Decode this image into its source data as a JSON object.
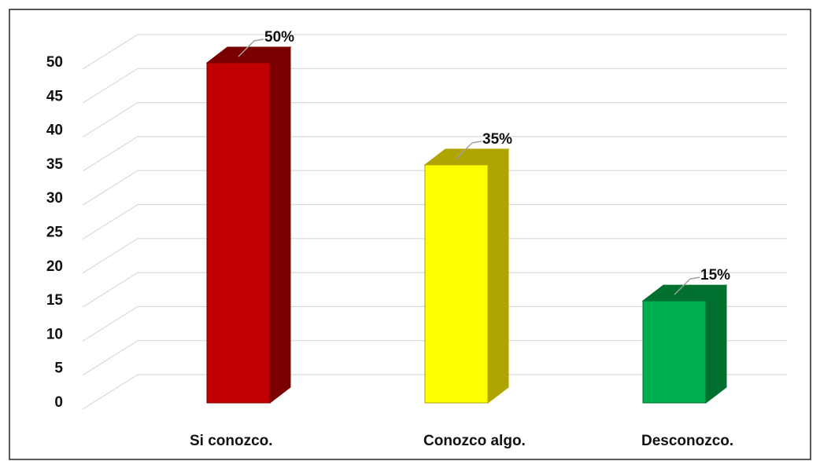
{
  "chart_data": {
    "type": "bar3d",
    "categories": [
      "Si conozco.",
      "Conozco algo.",
      "Desconozco."
    ],
    "values": [
      50,
      35,
      15
    ],
    "value_labels": [
      "50%",
      "35%",
      "15%"
    ],
    "colors": [
      "#c00000",
      "#ffff00",
      "#00b050"
    ],
    "side_colors": [
      "#7a0000",
      "#b0a400",
      "#00702e"
    ],
    "ylim": [
      0,
      50
    ],
    "yticks": [
      0,
      5,
      10,
      15,
      20,
      25,
      30,
      35,
      40,
      45,
      50
    ],
    "grid": true
  }
}
